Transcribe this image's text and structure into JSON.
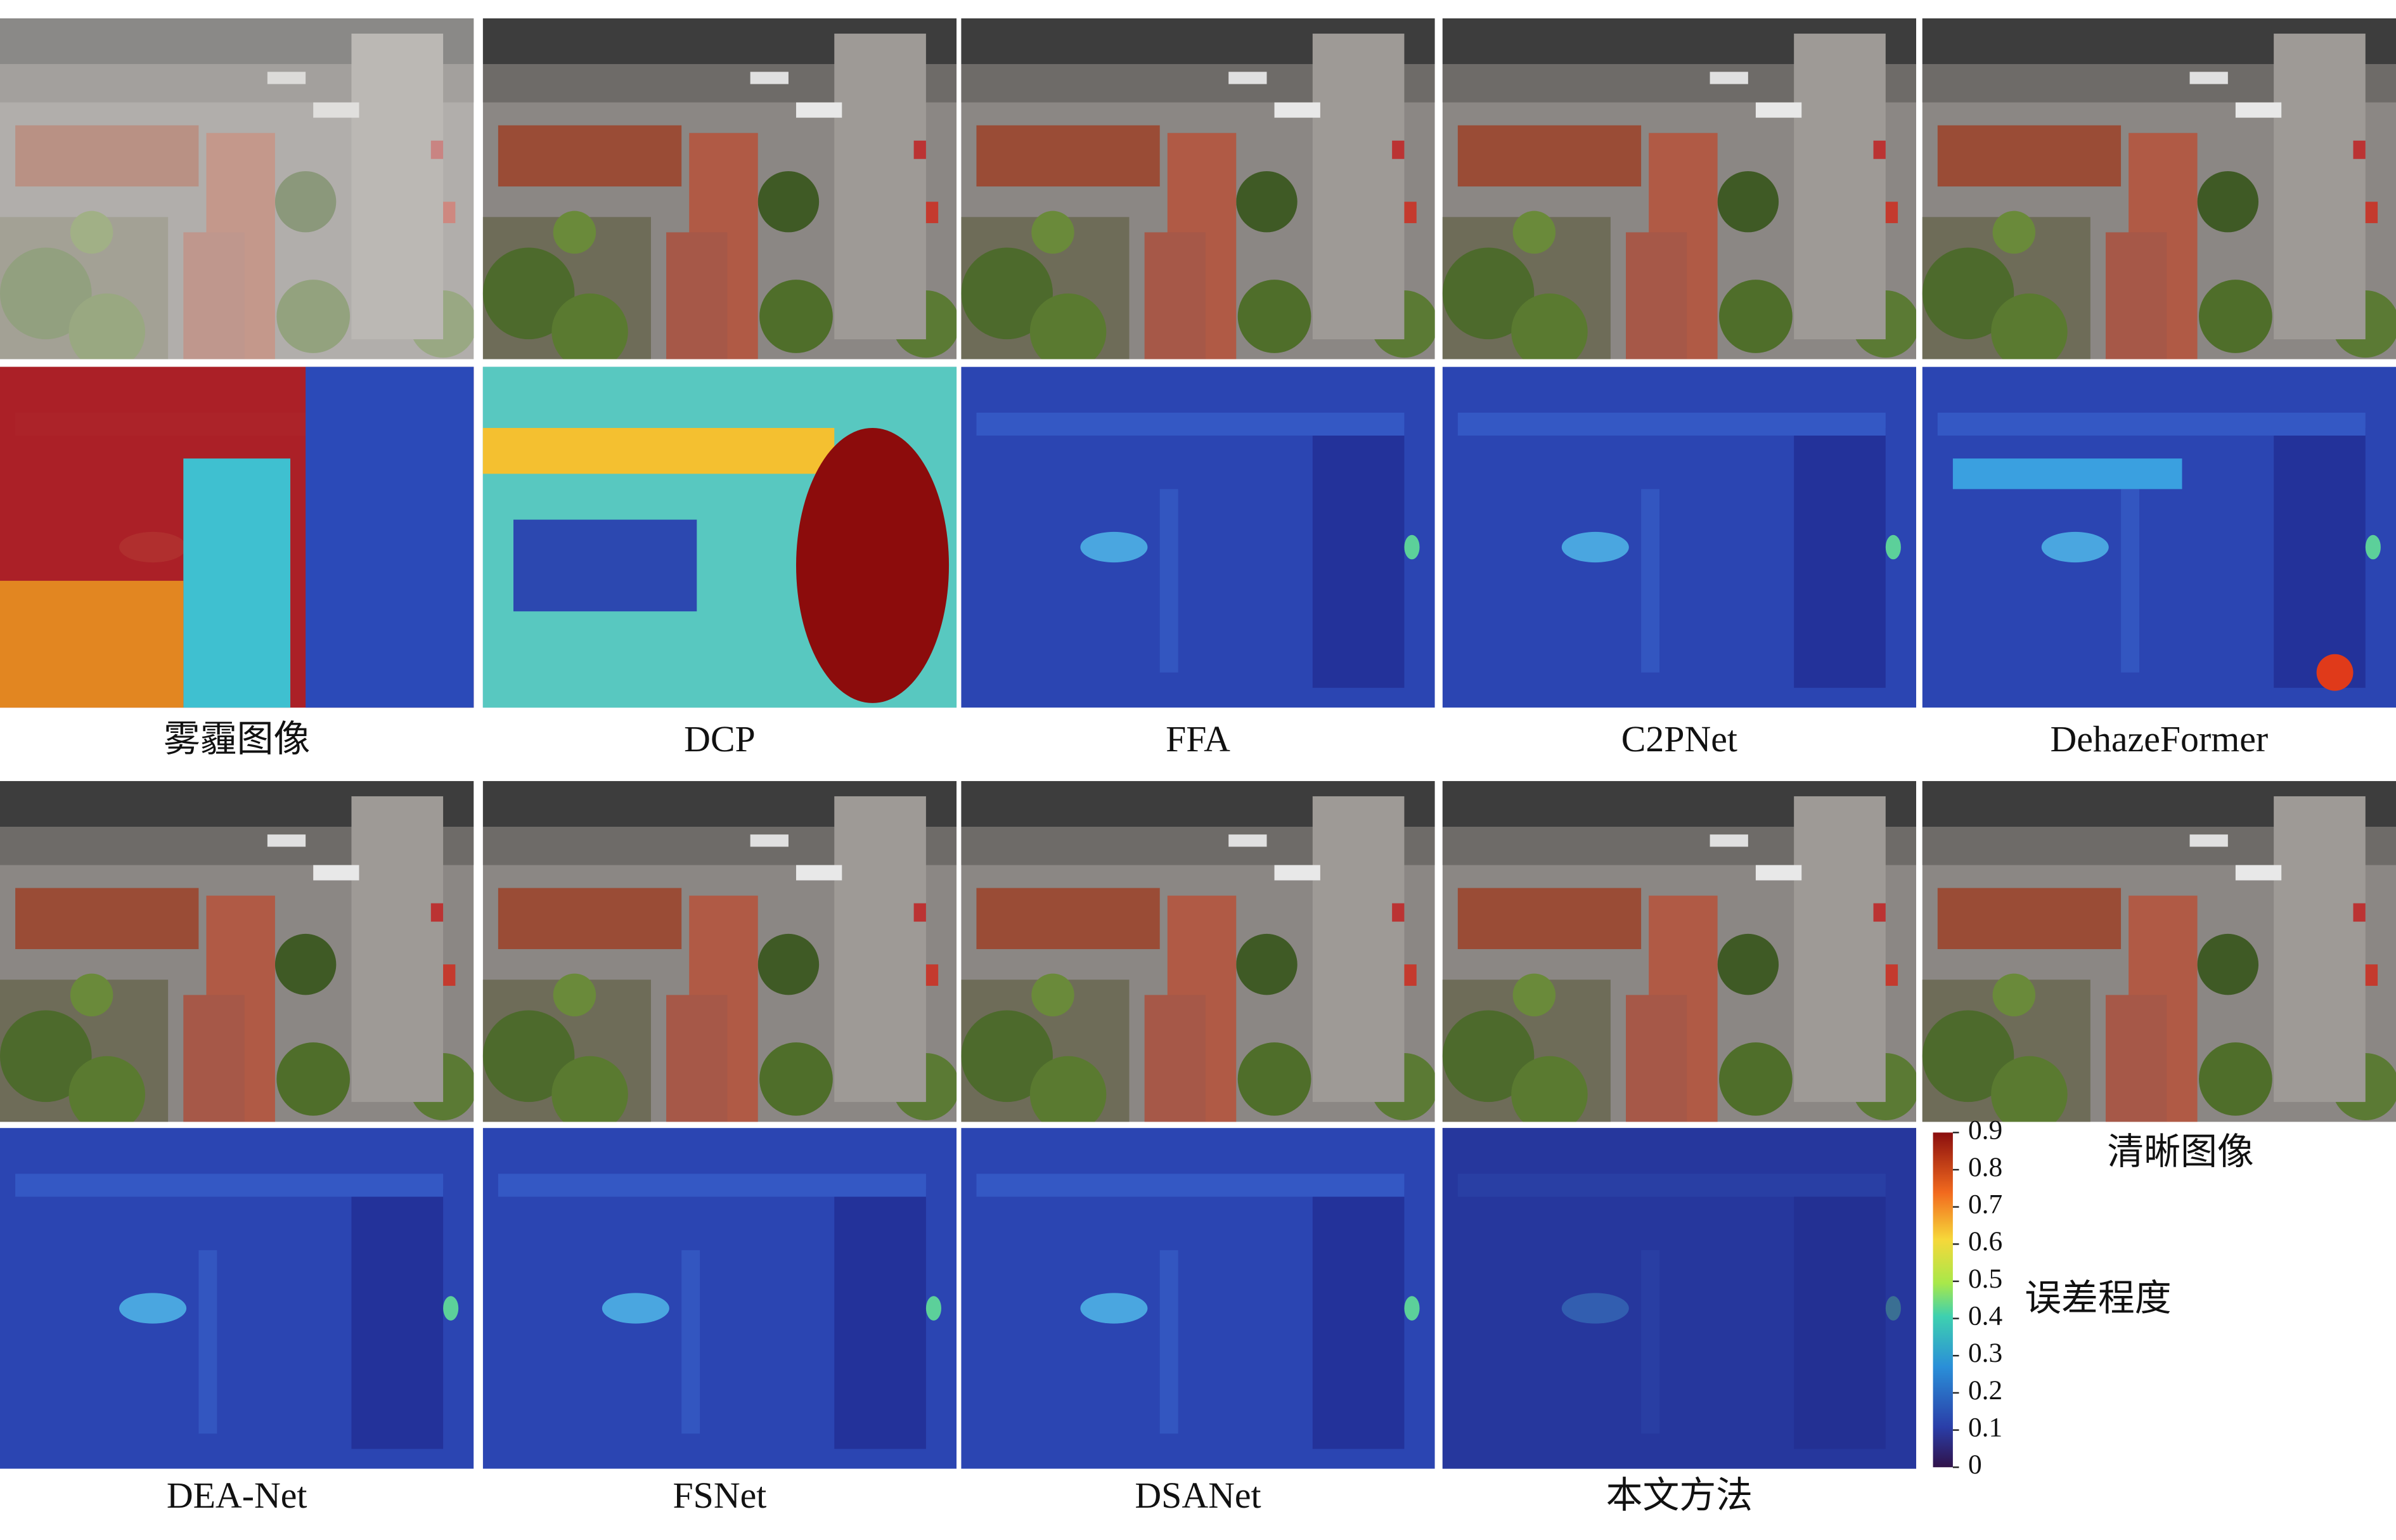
{
  "panels": {
    "row1_labels": [
      "雾霾图像",
      "DCP",
      "FFA",
      "C2PNet",
      "DehazeFormer"
    ],
    "row2_labels": [
      "DEA-Net",
      "FSNet",
      "DSANet",
      "本文方法"
    ],
    "clear_label": "清晰图像"
  },
  "colorbar": {
    "title": "误差程度",
    "ticks": [
      0,
      0.1,
      0.2,
      0.3,
      0.4,
      0.5,
      0.6,
      0.7,
      0.8,
      0.9
    ]
  }
}
